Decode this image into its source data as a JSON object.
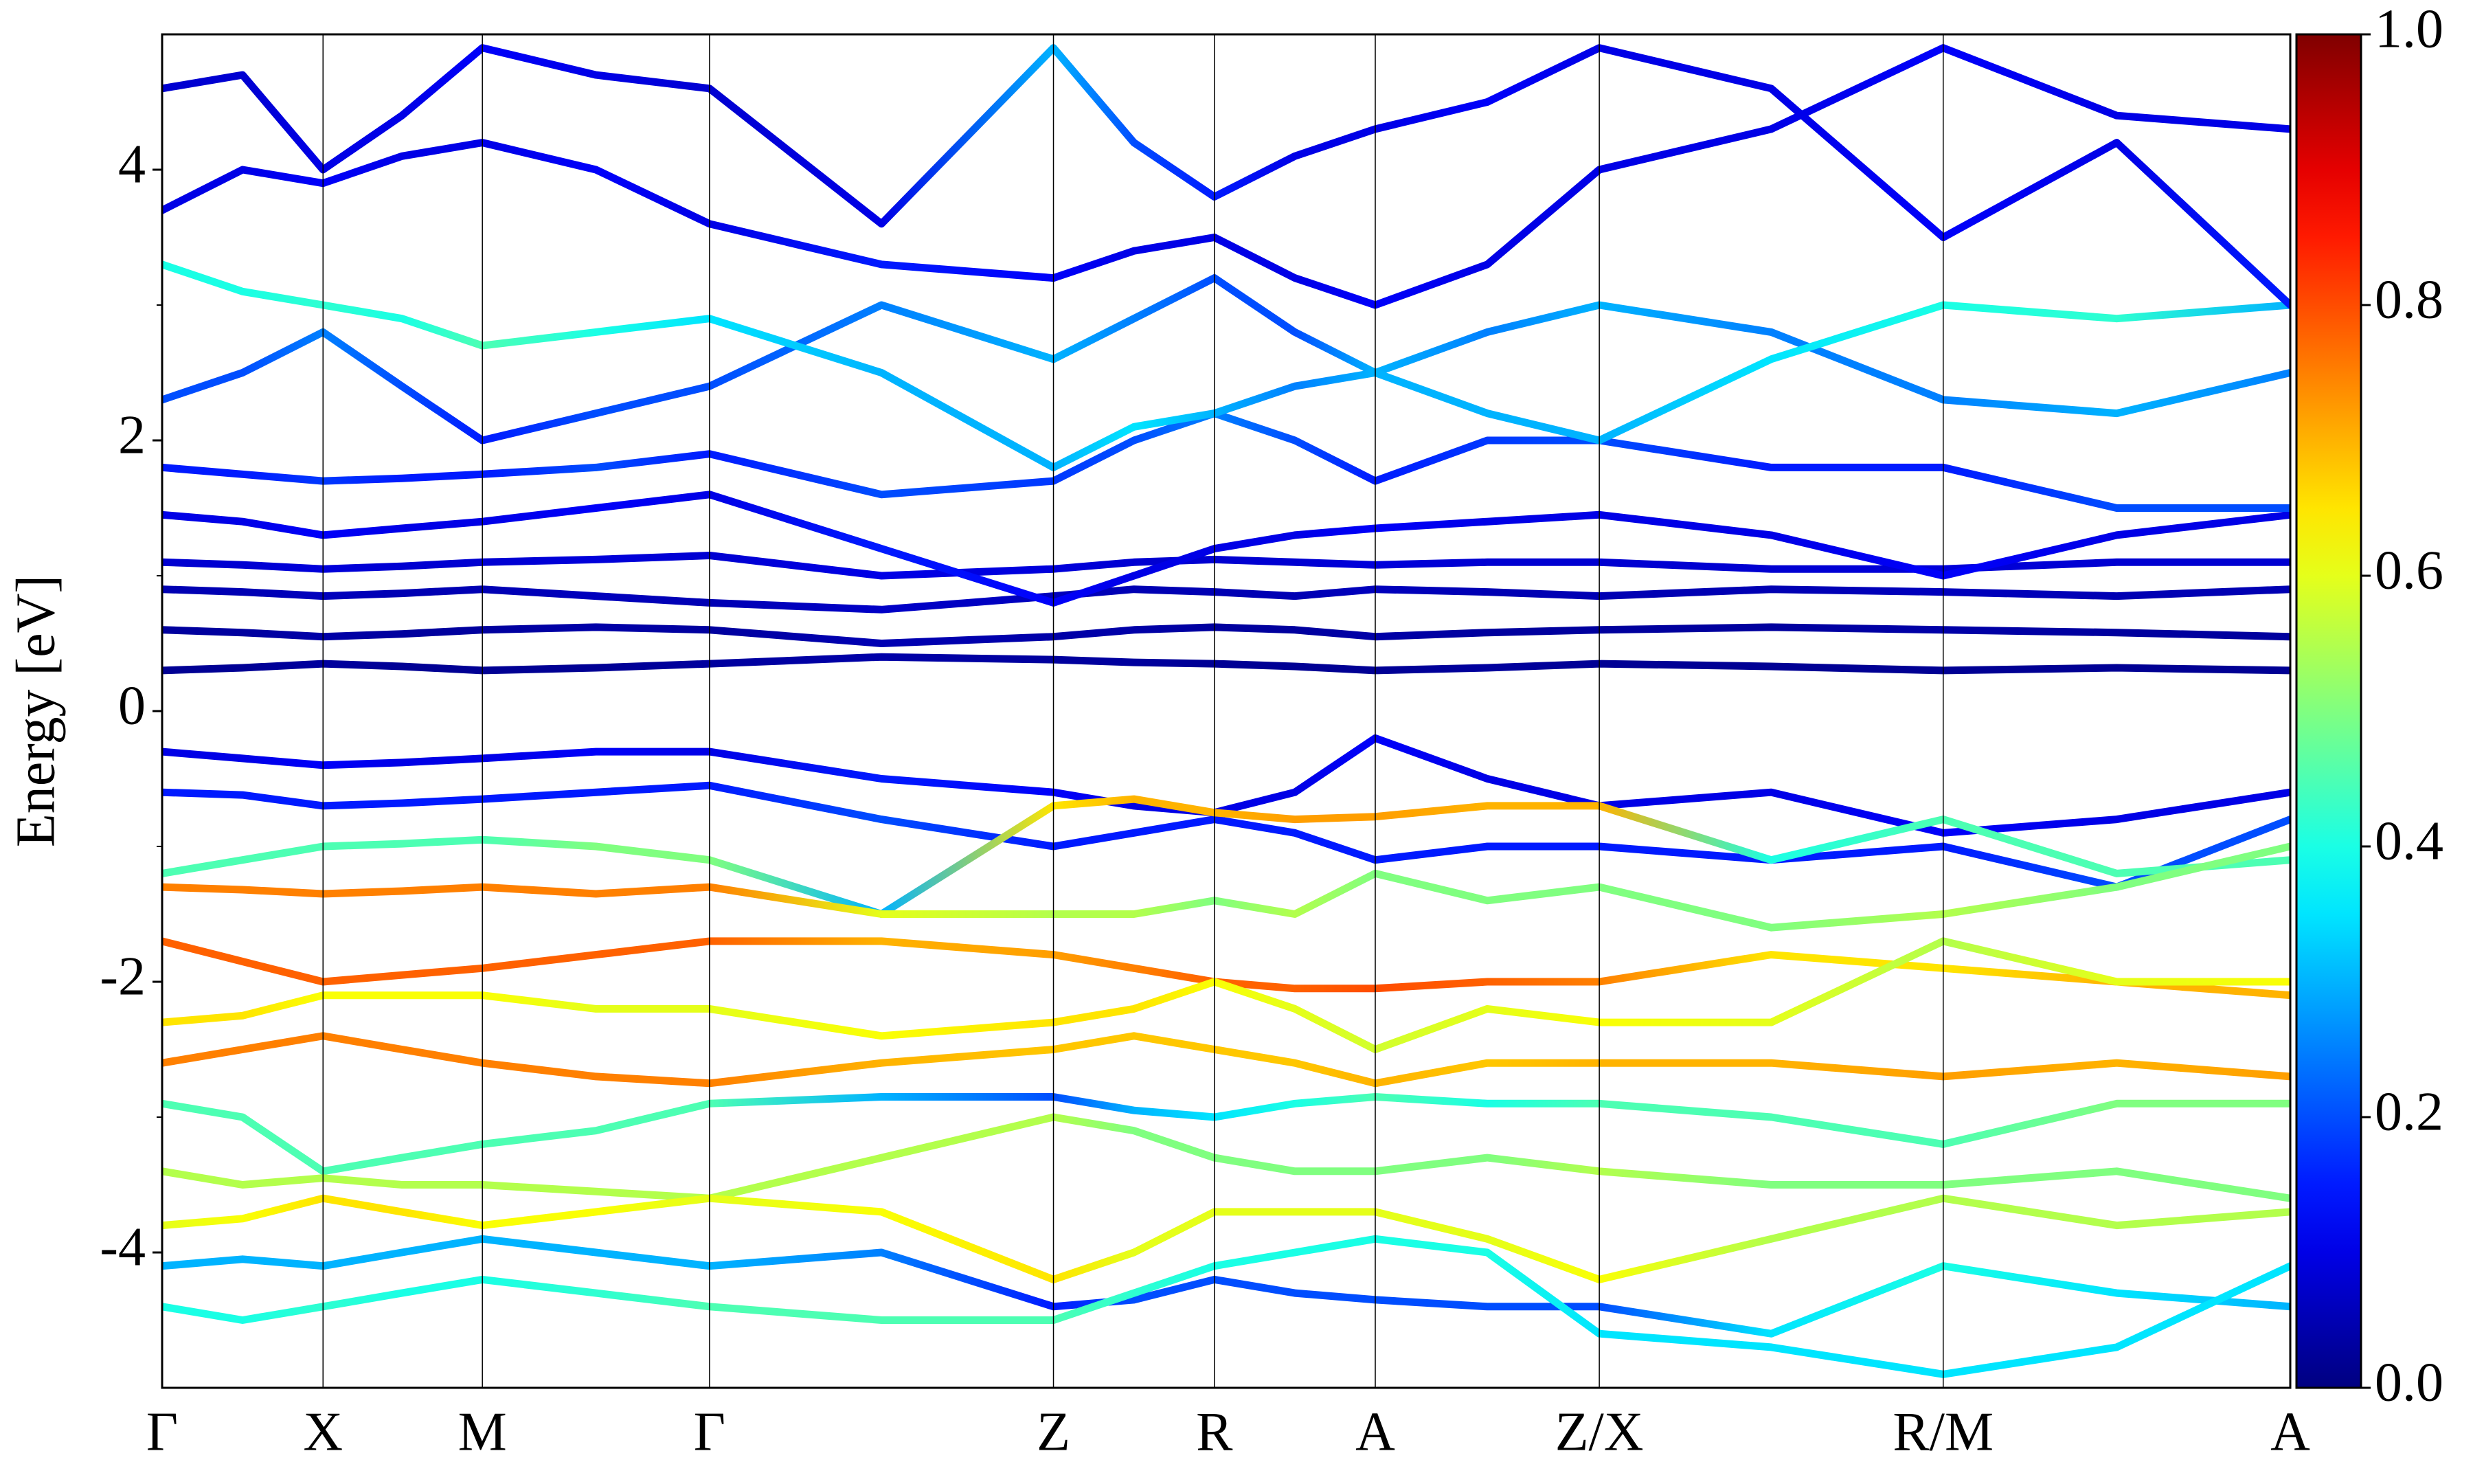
{
  "chart_data": {
    "type": "band-structure",
    "ylabel": "Energy [eV]",
    "x": [
      0,
      0.51,
      1.02,
      1.52,
      2.03,
      2.75,
      3.47,
      4.56,
      5.65,
      6.16,
      6.67,
      7.18,
      7.69,
      8.4,
      9.11,
      10.2,
      11.29,
      12.39,
      13.49
    ],
    "xlim": [
      0,
      13.49
    ],
    "xticks": [
      {
        "value": 0,
        "label": "Γ"
      },
      {
        "value": 1.02,
        "label": "X"
      },
      {
        "value": 2.03,
        "label": "M"
      },
      {
        "value": 3.47,
        "label": "Γ"
      },
      {
        "value": 5.65,
        "label": "Z"
      },
      {
        "value": 6.67,
        "label": "R"
      },
      {
        "value": 7.69,
        "label": "A"
      },
      {
        "value": 9.11,
        "label": "Z/X"
      },
      {
        "value": 11.29,
        "label": "R/M"
      },
      {
        "value": 13.49,
        "label": "A"
      }
    ],
    "ylim": [
      -5,
      5
    ],
    "yticks": [
      -4,
      -2,
      0,
      2,
      4
    ],
    "yminorticks": [
      -3,
      -1,
      1,
      3
    ],
    "colormap": "jet",
    "clim": [
      0,
      1
    ],
    "cticks": [
      {
        "value": 0,
        "label": "0.0"
      },
      {
        "value": 0.2,
        "label": "0.2"
      },
      {
        "value": 0.4,
        "label": "0.4"
      },
      {
        "value": 0.6,
        "label": "0.6"
      },
      {
        "value": 0.8,
        "label": "0.8"
      },
      {
        "value": 1,
        "label": "1.0"
      }
    ],
    "bands": [
      {
        "values": [
          0.3,
          0.32,
          0.35,
          0.33,
          0.3,
          0.32,
          0.35,
          0.4,
          0.38,
          0.36,
          0.35,
          0.33,
          0.3,
          0.32,
          0.35,
          0.33,
          0.3,
          0.32,
          0.3
        ],
        "weights": [
          0.02,
          0.02,
          0.03,
          0.02,
          0.02,
          0.02,
          0.03,
          0.04,
          0.03,
          0.03,
          0.02,
          0.02,
          0.02,
          0.03,
          0.02,
          0.02,
          0.02,
          0.02,
          0.02
        ]
      },
      {
        "values": [
          0.6,
          0.58,
          0.55,
          0.57,
          0.6,
          0.62,
          0.6,
          0.5,
          0.55,
          0.6,
          0.62,
          0.6,
          0.55,
          0.58,
          0.6,
          0.62,
          0.6,
          0.58,
          0.55
        ],
        "weights": [
          0.03,
          0.03,
          0.04,
          0.03,
          0.03,
          0.04,
          0.03,
          0.05,
          0.04,
          0.04,
          0.03,
          0.03,
          0.04,
          0.03,
          0.03,
          0.03,
          0.04,
          0.03,
          0.03
        ]
      },
      {
        "values": [
          0.9,
          0.88,
          0.85,
          0.87,
          0.9,
          0.85,
          0.8,
          0.75,
          0.85,
          0.9,
          0.88,
          0.85,
          0.9,
          0.88,
          0.85,
          0.9,
          0.88,
          0.85,
          0.9
        ],
        "weights": [
          0.05,
          0.05,
          0.06,
          0.05,
          0.05,
          0.06,
          0.05,
          0.07,
          0.06,
          0.05,
          0.05,
          0.05,
          0.06,
          0.05,
          0.05,
          0.05,
          0.06,
          0.05,
          0.05
        ]
      },
      {
        "values": [
          1.1,
          1.08,
          1.05,
          1.07,
          1.1,
          1.12,
          1.15,
          1.0,
          1.05,
          1.1,
          1.12,
          1.1,
          1.08,
          1.1,
          1.1,
          1.05,
          1.05,
          1.1,
          1.1
        ],
        "weights": [
          0.08,
          0.08,
          0.09,
          0.08,
          0.08,
          0.09,
          0.08,
          0.1,
          0.09,
          0.08,
          0.08,
          0.08,
          0.09,
          0.08,
          0.08,
          0.08,
          0.09,
          0.08,
          0.08
        ]
      },
      {
        "values": [
          1.45,
          1.4,
          1.3,
          1.35,
          1.4,
          1.5,
          1.6,
          1.2,
          0.8,
          1.0,
          1.2,
          1.3,
          1.35,
          1.4,
          1.45,
          1.3,
          1.0,
          1.3,
          1.45
        ],
        "weights": [
          0.1,
          0.1,
          0.12,
          0.1,
          0.1,
          0.12,
          0.1,
          0.15,
          0.12,
          0.1,
          0.1,
          0.1,
          0.12,
          0.1,
          0.1,
          0.1,
          0.12,
          0.1,
          0.1
        ]
      },
      {
        "values": [
          1.8,
          1.75,
          1.7,
          1.72,
          1.75,
          1.8,
          1.9,
          1.6,
          1.7,
          2.0,
          2.2,
          2.0,
          1.7,
          2.0,
          2.0,
          1.8,
          1.8,
          1.5,
          1.5
        ],
        "weights": [
          0.15,
          0.15,
          0.18,
          0.15,
          0.15,
          0.2,
          0.15,
          0.2,
          0.18,
          0.2,
          0.25,
          0.2,
          0.15,
          0.18,
          0.2,
          0.15,
          0.15,
          0.2,
          0.2
        ]
      },
      {
        "values": [
          2.3,
          2.5,
          2.8,
          2.4,
          2.0,
          2.2,
          2.4,
          3.0,
          2.6,
          2.9,
          3.2,
          2.8,
          2.5,
          2.8,
          3.0,
          2.8,
          2.3,
          2.2,
          2.5
        ],
        "weights": [
          0.2,
          0.2,
          0.25,
          0.2,
          0.15,
          0.2,
          0.2,
          0.25,
          0.3,
          0.25,
          0.2,
          0.2,
          0.3,
          0.25,
          0.3,
          0.25,
          0.25,
          0.3,
          0.25
        ]
      },
      {
        "values": [
          3.3,
          3.1,
          3.0,
          2.9,
          2.7,
          2.8,
          2.9,
          2.5,
          1.8,
          2.1,
          2.2,
          2.4,
          2.5,
          2.2,
          2.0,
          2.6,
          3.0,
          2.9,
          3.0
        ],
        "weights": [
          0.4,
          0.4,
          0.42,
          0.4,
          0.45,
          0.4,
          0.35,
          0.3,
          0.3,
          0.35,
          0.3,
          0.25,
          0.3,
          0.3,
          0.3,
          0.35,
          0.4,
          0.42,
          0.3
        ]
      },
      {
        "values": [
          3.7,
          4.0,
          3.9,
          4.1,
          4.2,
          4.0,
          3.6,
          3.3,
          3.2,
          3.4,
          3.5,
          3.2,
          3.0,
          3.3,
          4.0,
          4.3,
          4.9,
          4.4,
          4.3
        ],
        "weights": [
          0.1,
          0.1,
          0.12,
          0.1,
          0.1,
          0.12,
          0.1,
          0.15,
          0.12,
          0.1,
          0.1,
          0.1,
          0.12,
          0.1,
          0.1,
          0.1,
          0.12,
          0.1,
          0.1
        ]
      },
      {
        "values": [
          4.6,
          4.7,
          4.0,
          4.4,
          4.9,
          4.7,
          4.6,
          3.6,
          4.9,
          4.2,
          3.8,
          4.1,
          4.3,
          4.5,
          4.9,
          4.6,
          3.5,
          4.2,
          3.0
        ],
        "weights": [
          0.08,
          0.08,
          0.1,
          0.1,
          0.12,
          0.1,
          0.08,
          0.1,
          0.3,
          0.2,
          0.15,
          0.1,
          0.1,
          0.12,
          0.1,
          0.1,
          0.12,
          0.1,
          0.15
        ]
      },
      {
        "values": [
          -0.3,
          -0.35,
          -0.4,
          -0.38,
          -0.35,
          -0.3,
          -0.3,
          -0.5,
          -0.6,
          -0.7,
          -0.75,
          -0.6,
          -0.2,
          -0.5,
          -0.7,
          -0.6,
          -0.9,
          -0.8,
          -0.6
        ],
        "weights": [
          0.1,
          0.1,
          0.12,
          0.1,
          0.1,
          0.12,
          0.1,
          0.15,
          0.12,
          0.1,
          0.1,
          0.1,
          0.12,
          0.1,
          0.1,
          0.1,
          0.12,
          0.1,
          0.1
        ]
      },
      {
        "values": [
          -0.6,
          -0.62,
          -0.7,
          -0.68,
          -0.65,
          -0.6,
          -0.55,
          -0.8,
          -1.0,
          -0.9,
          -0.8,
          -0.9,
          -1.1,
          -1.0,
          -1.0,
          -1.1,
          -1.0,
          -1.3,
          -0.8
        ],
        "weights": [
          0.15,
          0.15,
          0.15,
          0.15,
          0.15,
          0.15,
          0.15,
          0.2,
          0.15,
          0.15,
          0.15,
          0.15,
          0.15,
          0.15,
          0.15,
          0.15,
          0.15,
          0.2,
          0.2
        ]
      },
      {
        "values": [
          -1.2,
          -1.1,
          -1.0,
          -0.98,
          -0.95,
          -1.0,
          -1.1,
          -1.5,
          -0.7,
          -0.65,
          -0.75,
          -0.8,
          -0.78,
          -0.7,
          -0.7,
          -1.1,
          -0.8,
          -1.2,
          -1.1
        ],
        "weights": [
          0.45,
          0.45,
          0.45,
          0.45,
          0.45,
          0.5,
          0.5,
          0.3,
          0.65,
          0.7,
          0.7,
          0.72,
          0.72,
          0.7,
          0.7,
          0.4,
          0.45,
          0.45,
          0.45
        ]
      },
      {
        "values": [
          -1.3,
          -1.32,
          -1.35,
          -1.33,
          -1.3,
          -1.35,
          -1.3,
          -1.5,
          -1.5,
          -1.5,
          -1.4,
          -1.5,
          -1.2,
          -1.4,
          -1.3,
          -1.6,
          -1.5,
          -1.3,
          -1.0
        ],
        "weights": [
          0.75,
          0.75,
          0.75,
          0.75,
          0.75,
          0.75,
          0.75,
          0.6,
          0.55,
          0.55,
          0.5,
          0.55,
          0.5,
          0.5,
          0.5,
          0.5,
          0.55,
          0.5,
          0.5
        ]
      },
      {
        "values": [
          -1.7,
          -1.85,
          -2.0,
          -1.95,
          -1.9,
          -1.8,
          -1.7,
          -1.7,
          -1.8,
          -1.9,
          -2.0,
          -2.05,
          -2.05,
          -2.0,
          -2.0,
          -1.8,
          -1.9,
          -2.0,
          -2.1
        ],
        "weights": [
          0.78,
          0.78,
          0.78,
          0.78,
          0.78,
          0.78,
          0.78,
          0.7,
          0.72,
          0.75,
          0.78,
          0.78,
          0.8,
          0.78,
          0.75,
          0.65,
          0.65,
          0.7,
          0.7
        ]
      },
      {
        "values": [
          -2.3,
          -2.25,
          -2.1,
          -2.1,
          -2.1,
          -2.2,
          -2.2,
          -2.4,
          -2.3,
          -2.2,
          -2.0,
          -2.2,
          -2.5,
          -2.2,
          -2.3,
          -2.3,
          -1.7,
          -2.0,
          -2.0
        ],
        "weights": [
          0.65,
          0.65,
          0.62,
          0.62,
          0.62,
          0.6,
          0.6,
          0.62,
          0.65,
          0.65,
          0.62,
          0.6,
          0.58,
          0.6,
          0.62,
          0.6,
          0.55,
          0.6,
          0.62
        ]
      },
      {
        "values": [
          -2.6,
          -2.5,
          -2.4,
          -2.5,
          -2.6,
          -2.7,
          -2.75,
          -2.6,
          -2.5,
          -2.4,
          -2.5,
          -2.6,
          -2.75,
          -2.6,
          -2.6,
          -2.6,
          -2.7,
          -2.6,
          -2.7
        ],
        "weights": [
          0.75,
          0.75,
          0.75,
          0.75,
          0.75,
          0.75,
          0.75,
          0.7,
          0.68,
          0.68,
          0.68,
          0.68,
          0.7,
          0.68,
          0.7,
          0.7,
          0.72,
          0.7,
          0.72
        ]
      },
      {
        "values": [
          -2.9,
          -3.0,
          -3.4,
          -3.3,
          -3.2,
          -3.1,
          -2.9,
          -2.85,
          -2.85,
          -2.95,
          -3.0,
          -2.9,
          -2.85,
          -2.9,
          -2.9,
          -3.0,
          -3.2,
          -2.9,
          -2.9
        ],
        "weights": [
          0.45,
          0.45,
          0.45,
          0.45,
          0.45,
          0.45,
          0.45,
          0.3,
          0.2,
          0.3,
          0.35,
          0.4,
          0.45,
          0.4,
          0.45,
          0.45,
          0.45,
          0.5,
          0.5
        ]
      },
      {
        "values": [
          -3.4,
          -3.5,
          -3.45,
          -3.5,
          -3.5,
          -3.55,
          -3.6,
          -3.3,
          -3.0,
          -3.1,
          -3.3,
          -3.4,
          -3.4,
          -3.3,
          -3.4,
          -3.5,
          -3.5,
          -3.4,
          -3.6
        ],
        "weights": [
          0.55,
          0.55,
          0.55,
          0.55,
          0.55,
          0.55,
          0.55,
          0.55,
          0.55,
          0.5,
          0.5,
          0.5,
          0.5,
          0.5,
          0.55,
          0.5,
          0.5,
          0.5,
          0.5
        ]
      },
      {
        "values": [
          -3.8,
          -3.75,
          -3.6,
          -3.7,
          -3.8,
          -3.7,
          -3.6,
          -3.7,
          -4.2,
          -4.0,
          -3.7,
          -3.7,
          -3.7,
          -3.9,
          -4.2,
          -3.9,
          -3.6,
          -3.8,
          -3.7
        ],
        "weights": [
          0.6,
          0.62,
          0.65,
          0.65,
          0.62,
          0.62,
          0.6,
          0.62,
          0.65,
          0.6,
          0.6,
          0.6,
          0.6,
          0.6,
          0.62,
          0.55,
          0.55,
          0.55,
          0.55
        ]
      },
      {
        "values": [
          -4.1,
          -4.05,
          -4.1,
          -4.0,
          -3.9,
          -4.0,
          -4.1,
          -4.0,
          -4.4,
          -4.35,
          -4.2,
          -4.3,
          -4.35,
          -4.4,
          -4.4,
          -4.6,
          -4.1,
          -4.3,
          -4.4
        ],
        "weights": [
          0.3,
          0.3,
          0.3,
          0.3,
          0.3,
          0.3,
          0.3,
          0.25,
          0.15,
          0.2,
          0.2,
          0.2,
          0.2,
          0.2,
          0.2,
          0.35,
          0.4,
          0.35,
          0.3
        ]
      },
      {
        "values": [
          -4.4,
          -4.5,
          -4.4,
          -4.3,
          -4.2,
          -4.3,
          -4.4,
          -4.5,
          -4.5,
          -4.3,
          -4.1,
          -4.0,
          -3.9,
          -4.0,
          -4.6,
          -4.7,
          -4.9,
          -4.7,
          -4.1
        ],
        "weights": [
          0.4,
          0.4,
          0.42,
          0.4,
          0.4,
          0.42,
          0.45,
          0.45,
          0.45,
          0.42,
          0.4,
          0.4,
          0.4,
          0.4,
          0.35,
          0.35,
          0.35,
          0.35,
          0.35
        ]
      }
    ]
  }
}
